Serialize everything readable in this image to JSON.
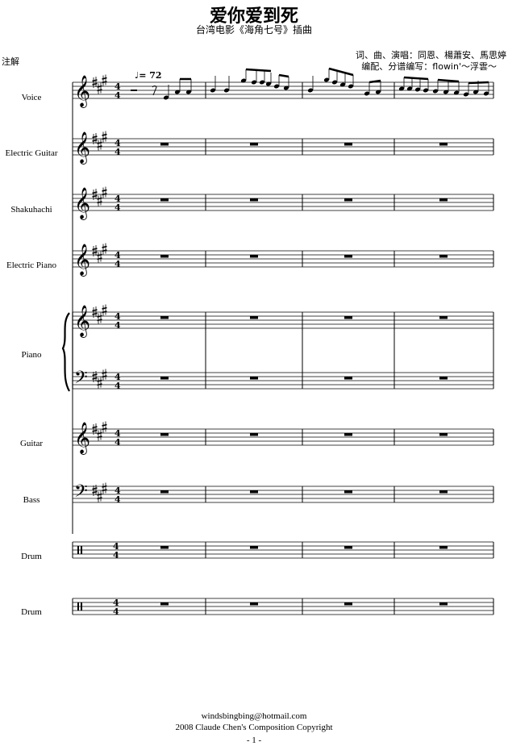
{
  "header": {
    "title": "爱你爱到死",
    "subtitle": "台湾电影《海角七号》插曲",
    "note": "注解",
    "credit_line1": "词、曲、演唱：同恩、楊蕭安、馬思婷",
    "credit_line2": "编配、分谱编写：flowin'～浮雲～"
  },
  "tempo": {
    "marking": "♩= 72"
  },
  "time_signature": {
    "top": "4",
    "bottom": "4"
  },
  "instruments": [
    {
      "label": "Voice",
      "clef": "treble"
    },
    {
      "label": "Electric Guitar",
      "clef": "treble"
    },
    {
      "label": "Shakuhachi",
      "clef": "treble"
    },
    {
      "label": "Electric Piano",
      "clef": "treble"
    },
    {
      "label": "Piano",
      "clef": "grand"
    },
    {
      "label": "Guitar",
      "clef": "treble"
    },
    {
      "label": "Bass",
      "clef": "bass"
    },
    {
      "label": "Drum",
      "clef": "percussion"
    },
    {
      "label": "Drum",
      "clef": "percussion"
    }
  ],
  "footer": {
    "email": "windsbingbing@hotmail.com",
    "copyright": "2008 Claude Chen's Composition Copyright",
    "page": "- 1 -"
  }
}
